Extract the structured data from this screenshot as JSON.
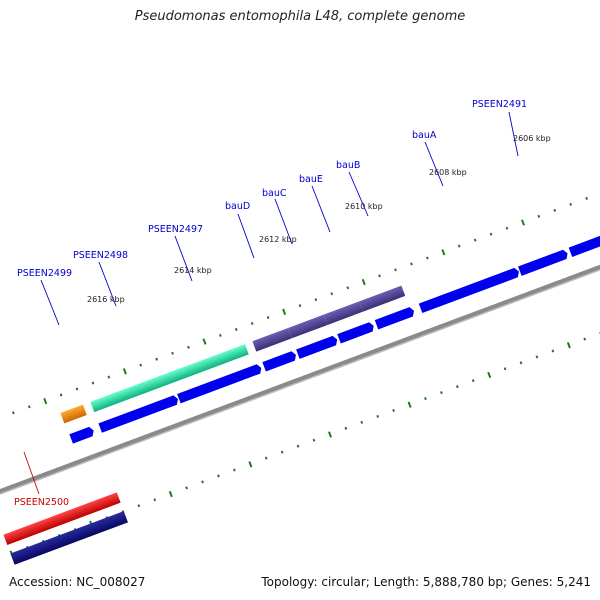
{
  "title": "Pseudomonas entomophila L48, complete genome",
  "footer": {
    "accession": "Accession: NC_008027",
    "topology": "Topology: circular; Length: 5,888,780 bp; Genes: 5,241"
  },
  "gene_labels": {
    "PSEEN2491": "PSEEN2491",
    "bauA": "bauA",
    "bauB": "bauB",
    "bauE": "bauE",
    "bauC": "bauC",
    "bauD": "bauD",
    "PSEEN2497": "PSEEN2497",
    "PSEEN2498": "PSEEN2498",
    "PSEEN2499": "PSEEN2499",
    "PSEEN2500": "PSEEN2500"
  },
  "kbp_labels": [
    "2606 kbp",
    "2608 kbp",
    "2610 kbp",
    "2612 kbp",
    "2614 kbp",
    "2616 kbp"
  ],
  "colors": {
    "backbone": "#888888",
    "tick": "#1f7a1f",
    "cds_blue": "#0000ee",
    "highlight_purple": "#4a3f8f",
    "highlight_green": "#22dd99",
    "highlight_orange": "#ee8800",
    "highlight_red": "#dd1111",
    "highlight_navy": "#10107a",
    "label_blue": "#0000cc",
    "label_red": "#cc0000"
  }
}
